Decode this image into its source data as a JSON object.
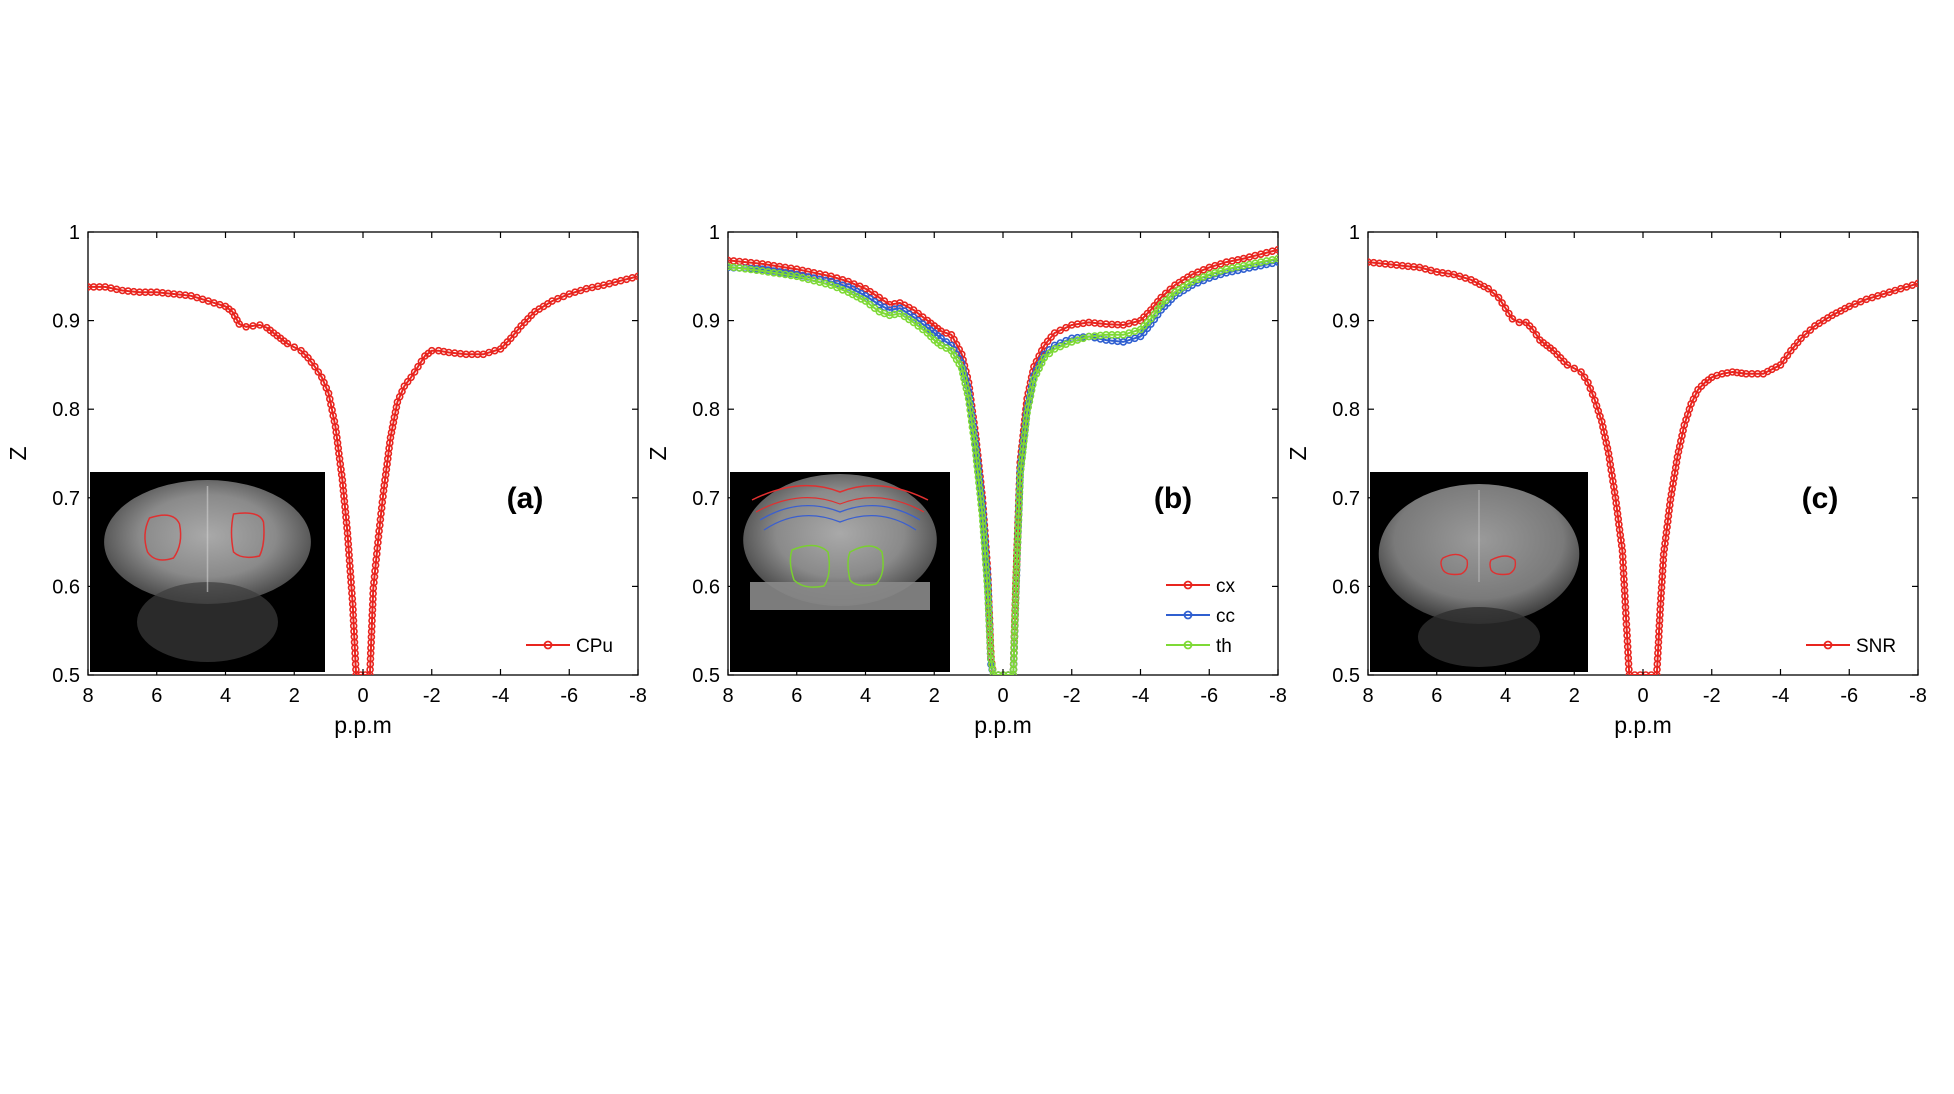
{
  "chart_data": [
    {
      "type": "line",
      "panel_label": "(a)",
      "xlabel": "p.p.m",
      "ylabel": "Z",
      "xlim": [
        8,
        -8
      ],
      "ylim": [
        0.5,
        1
      ],
      "x_ticks": [
        8,
        6,
        4,
        2,
        0,
        -2,
        -4,
        -6,
        -8
      ],
      "y_ticks": [
        0.5,
        0.6,
        0.7,
        0.8,
        0.9,
        1
      ],
      "x_tick_labels": [
        "8",
        "6",
        "4",
        "2",
        "0",
        "-2",
        "-4",
        "-6",
        "-8"
      ],
      "y_tick_labels": [
        "0.5",
        "0.6",
        "0.7",
        "0.8",
        "0.9",
        "1"
      ],
      "grid": false,
      "legend_position": "bottom-right",
      "inset": {
        "description_icon": "brain-mri-icon",
        "regions": 2,
        "region_color": "#e03030"
      },
      "series": [
        {
          "name": "CPu",
          "color": "#e8251f",
          "points": [
            [
              8,
              0.938
            ],
            [
              7.5,
              0.938
            ],
            [
              7,
              0.934
            ],
            [
              6.5,
              0.932
            ],
            [
              6,
              0.932
            ],
            [
              5.5,
              0.93
            ],
            [
              5,
              0.928
            ],
            [
              4.5,
              0.922
            ],
            [
              4,
              0.916
            ],
            [
              3.8,
              0.91
            ],
            [
              3.6,
              0.896
            ],
            [
              3.4,
              0.893
            ],
            [
              3.2,
              0.894
            ],
            [
              3,
              0.895
            ],
            [
              2.8,
              0.892
            ],
            [
              2.6,
              0.886
            ],
            [
              2.4,
              0.88
            ],
            [
              2.2,
              0.874
            ],
            [
              2,
              0.87
            ],
            [
              1.8,
              0.866
            ],
            [
              1.6,
              0.858
            ],
            [
              1.4,
              0.848
            ],
            [
              1.2,
              0.836
            ],
            [
              1.0,
              0.818
            ],
            [
              0.8,
              0.78
            ],
            [
              0.6,
              0.72
            ],
            [
              0.45,
              0.66
            ],
            [
              0.3,
              0.58
            ],
            [
              0.2,
              0.5
            ],
            [
              -0.2,
              0.5
            ],
            [
              -0.3,
              0.598
            ],
            [
              -0.45,
              0.656
            ],
            [
              -0.6,
              0.708
            ],
            [
              -0.8,
              0.768
            ],
            [
              -1.0,
              0.808
            ],
            [
              -1.2,
              0.826
            ],
            [
              -1.4,
              0.836
            ],
            [
              -1.6,
              0.848
            ],
            [
              -1.8,
              0.86
            ],
            [
              -2.0,
              0.866
            ],
            [
              -2.2,
              0.866
            ],
            [
              -2.5,
              0.864
            ],
            [
              -3.0,
              0.862
            ],
            [
              -3.5,
              0.862
            ],
            [
              -4.0,
              0.868
            ],
            [
              -4.3,
              0.88
            ],
            [
              -4.6,
              0.894
            ],
            [
              -5.0,
              0.91
            ],
            [
              -5.5,
              0.922
            ],
            [
              -6.0,
              0.93
            ],
            [
              -6.5,
              0.936
            ],
            [
              -7.0,
              0.94
            ],
            [
              -7.5,
              0.945
            ],
            [
              -8.0,
              0.95
            ]
          ]
        }
      ]
    },
    {
      "type": "line",
      "panel_label": "(b)",
      "xlabel": "p.p.m",
      "ylabel": "Z",
      "xlim": [
        8,
        -8
      ],
      "ylim": [
        0.5,
        1
      ],
      "x_ticks": [
        8,
        6,
        4,
        2,
        0,
        -2,
        -4,
        -6,
        -8
      ],
      "y_ticks": [
        0.5,
        0.6,
        0.7,
        0.8,
        0.9,
        1
      ],
      "x_tick_labels": [
        "8",
        "6",
        "4",
        "2",
        "0",
        "-2",
        "-4",
        "-6",
        "-8"
      ],
      "y_tick_labels": [
        "0.5",
        "0.6",
        "0.7",
        "0.8",
        "0.9",
        "1"
      ],
      "grid": false,
      "legend_position": "bottom-right",
      "inset": {
        "description_icon": "brain-mri-icon",
        "regions": 3,
        "region_colors": [
          "#e03030",
          "#3a5fd0",
          "#7ad030"
        ]
      },
      "series": [
        {
          "name": "cx",
          "color": "#e8251f",
          "points": [
            [
              8,
              0.968
            ],
            [
              7,
              0.964
            ],
            [
              6,
              0.958
            ],
            [
              5,
              0.95
            ],
            [
              4.5,
              0.944
            ],
            [
              4,
              0.936
            ],
            [
              3.6,
              0.926
            ],
            [
              3.3,
              0.918
            ],
            [
              3,
              0.92
            ],
            [
              2.6,
              0.912
            ],
            [
              2.2,
              0.9
            ],
            [
              2,
              0.894
            ],
            [
              1.8,
              0.888
            ],
            [
              1.5,
              0.884
            ],
            [
              1.2,
              0.862
            ],
            [
              1.0,
              0.83
            ],
            [
              0.8,
              0.772
            ],
            [
              0.6,
              0.7
            ],
            [
              0.45,
              0.62
            ],
            [
              0.35,
              0.52
            ],
            [
              0.28,
              0.5
            ],
            [
              -0.3,
              0.5
            ],
            [
              -0.38,
              0.61
            ],
            [
              -0.5,
              0.74
            ],
            [
              -0.7,
              0.812
            ],
            [
              -0.9,
              0.848
            ],
            [
              -1.2,
              0.872
            ],
            [
              -1.5,
              0.886
            ],
            [
              -2.0,
              0.895
            ],
            [
              -2.5,
              0.898
            ],
            [
              -3.0,
              0.896
            ],
            [
              -3.5,
              0.895
            ],
            [
              -4.0,
              0.9
            ],
            [
              -4.3,
              0.912
            ],
            [
              -4.6,
              0.926
            ],
            [
              -5.0,
              0.94
            ],
            [
              -5.5,
              0.952
            ],
            [
              -6.0,
              0.96
            ],
            [
              -6.5,
              0.966
            ],
            [
              -7.0,
              0.97
            ],
            [
              -7.5,
              0.975
            ],
            [
              -8.0,
              0.98
            ]
          ]
        },
        {
          "name": "cc",
          "color": "#2f5fd0",
          "points": [
            [
              8,
              0.96
            ],
            [
              7,
              0.958
            ],
            [
              6,
              0.952
            ],
            [
              5,
              0.944
            ],
            [
              4.5,
              0.938
            ],
            [
              4,
              0.928
            ],
            [
              3.6,
              0.918
            ],
            [
              3.3,
              0.912
            ],
            [
              3,
              0.914
            ],
            [
              2.6,
              0.904
            ],
            [
              2.2,
              0.892
            ],
            [
              2,
              0.886
            ],
            [
              1.8,
              0.88
            ],
            [
              1.5,
              0.872
            ],
            [
              1.2,
              0.852
            ],
            [
              1.0,
              0.82
            ],
            [
              0.8,
              0.762
            ],
            [
              0.6,
              0.69
            ],
            [
              0.45,
              0.61
            ],
            [
              0.35,
              0.512
            ],
            [
              0.28,
              0.5
            ],
            [
              -0.3,
              0.5
            ],
            [
              -0.38,
              0.6
            ],
            [
              -0.5,
              0.73
            ],
            [
              -0.7,
              0.8
            ],
            [
              -0.9,
              0.838
            ],
            [
              -1.2,
              0.862
            ],
            [
              -1.5,
              0.872
            ],
            [
              -2.0,
              0.88
            ],
            [
              -2.5,
              0.882
            ],
            [
              -3.0,
              0.878
            ],
            [
              -3.5,
              0.876
            ],
            [
              -4.0,
              0.882
            ],
            [
              -4.3,
              0.896
            ],
            [
              -4.6,
              0.912
            ],
            [
              -5.0,
              0.928
            ],
            [
              -5.5,
              0.94
            ],
            [
              -6.0,
              0.948
            ],
            [
              -6.5,
              0.954
            ],
            [
              -7.0,
              0.958
            ],
            [
              -7.5,
              0.962
            ],
            [
              -8.0,
              0.966
            ]
          ]
        },
        {
          "name": "th",
          "color": "#7ed936",
          "points": [
            [
              8,
              0.961
            ],
            [
              7,
              0.956
            ],
            [
              6,
              0.95
            ],
            [
              5,
              0.94
            ],
            [
              4.5,
              0.932
            ],
            [
              4,
              0.922
            ],
            [
              3.6,
              0.91
            ],
            [
              3.3,
              0.906
            ],
            [
              3,
              0.908
            ],
            [
              2.6,
              0.898
            ],
            [
              2.2,
              0.886
            ],
            [
              2,
              0.878
            ],
            [
              1.8,
              0.872
            ],
            [
              1.5,
              0.866
            ],
            [
              1.2,
              0.846
            ],
            [
              1.0,
              0.812
            ],
            [
              0.8,
              0.754
            ],
            [
              0.6,
              0.68
            ],
            [
              0.45,
              0.6
            ],
            [
              0.35,
              0.518
            ],
            [
              0.28,
              0.5
            ],
            [
              -0.3,
              0.5
            ],
            [
              -0.38,
              0.606
            ],
            [
              -0.5,
              0.726
            ],
            [
              -0.7,
              0.796
            ],
            [
              -0.9,
              0.834
            ],
            [
              -1.2,
              0.858
            ],
            [
              -1.5,
              0.868
            ],
            [
              -2.0,
              0.876
            ],
            [
              -2.5,
              0.882
            ],
            [
              -3.0,
              0.884
            ],
            [
              -3.5,
              0.884
            ],
            [
              -4.0,
              0.89
            ],
            [
              -4.3,
              0.902
            ],
            [
              -4.6,
              0.918
            ],
            [
              -5.0,
              0.932
            ],
            [
              -5.5,
              0.944
            ],
            [
              -6.0,
              0.952
            ],
            [
              -6.5,
              0.958
            ],
            [
              -7.0,
              0.962
            ],
            [
              -7.5,
              0.966
            ],
            [
              -8.0,
              0.97
            ]
          ]
        }
      ]
    },
    {
      "type": "line",
      "panel_label": "(c)",
      "xlabel": "p.p.m",
      "ylabel": "Z",
      "xlim": [
        8,
        -8
      ],
      "ylim": [
        0.5,
        1
      ],
      "x_ticks": [
        8,
        6,
        4,
        2,
        0,
        -2,
        -4,
        -6,
        -8
      ],
      "y_ticks": [
        0.5,
        0.6,
        0.7,
        0.8,
        0.9,
        1
      ],
      "x_tick_labels": [
        "8",
        "6",
        "4",
        "2",
        "0",
        "-2",
        "-4",
        "-6",
        "-8"
      ],
      "y_tick_labels": [
        "0.5",
        "0.6",
        "0.7",
        "0.8",
        "0.9",
        "1"
      ],
      "grid": false,
      "legend_position": "bottom-right",
      "inset": {
        "description_icon": "brain-mri-icon",
        "regions": 2,
        "region_color": "#e03030"
      },
      "series": [
        {
          "name": "SNR",
          "color": "#e8251f",
          "points": [
            [
              8,
              0.966
            ],
            [
              7.5,
              0.964
            ],
            [
              7,
              0.962
            ],
            [
              6.5,
              0.96
            ],
            [
              6,
              0.955
            ],
            [
              5.5,
              0.952
            ],
            [
              5,
              0.946
            ],
            [
              4.5,
              0.936
            ],
            [
              4.2,
              0.926
            ],
            [
              4,
              0.914
            ],
            [
              3.8,
              0.902
            ],
            [
              3.6,
              0.898
            ],
            [
              3.4,
              0.898
            ],
            [
              3.2,
              0.89
            ],
            [
              3,
              0.878
            ],
            [
              2.8,
              0.872
            ],
            [
              2.6,
              0.866
            ],
            [
              2.4,
              0.858
            ],
            [
              2.2,
              0.85
            ],
            [
              2.0,
              0.846
            ],
            [
              1.8,
              0.842
            ],
            [
              1.6,
              0.83
            ],
            [
              1.4,
              0.81
            ],
            [
              1.2,
              0.786
            ],
            [
              1.0,
              0.75
            ],
            [
              0.8,
              0.7
            ],
            [
              0.6,
              0.64
            ],
            [
              0.5,
              0.57
            ],
            [
              0.4,
              0.5
            ],
            [
              -0.4,
              0.5
            ],
            [
              -0.5,
              0.574
            ],
            [
              -0.6,
              0.636
            ],
            [
              -0.8,
              0.698
            ],
            [
              -1.0,
              0.746
            ],
            [
              -1.2,
              0.782
            ],
            [
              -1.4,
              0.806
            ],
            [
              -1.6,
              0.822
            ],
            [
              -1.8,
              0.83
            ],
            [
              -2.0,
              0.836
            ],
            [
              -2.3,
              0.84
            ],
            [
              -2.6,
              0.842
            ],
            [
              -3.0,
              0.84
            ],
            [
              -3.5,
              0.84
            ],
            [
              -4.0,
              0.85
            ],
            [
              -4.3,
              0.866
            ],
            [
              -4.6,
              0.88
            ],
            [
              -5.0,
              0.894
            ],
            [
              -5.5,
              0.906
            ],
            [
              -6.0,
              0.916
            ],
            [
              -6.5,
              0.924
            ],
            [
              -7.0,
              0.93
            ],
            [
              -7.5,
              0.936
            ],
            [
              -8.0,
              0.942
            ]
          ]
        }
      ]
    }
  ]
}
